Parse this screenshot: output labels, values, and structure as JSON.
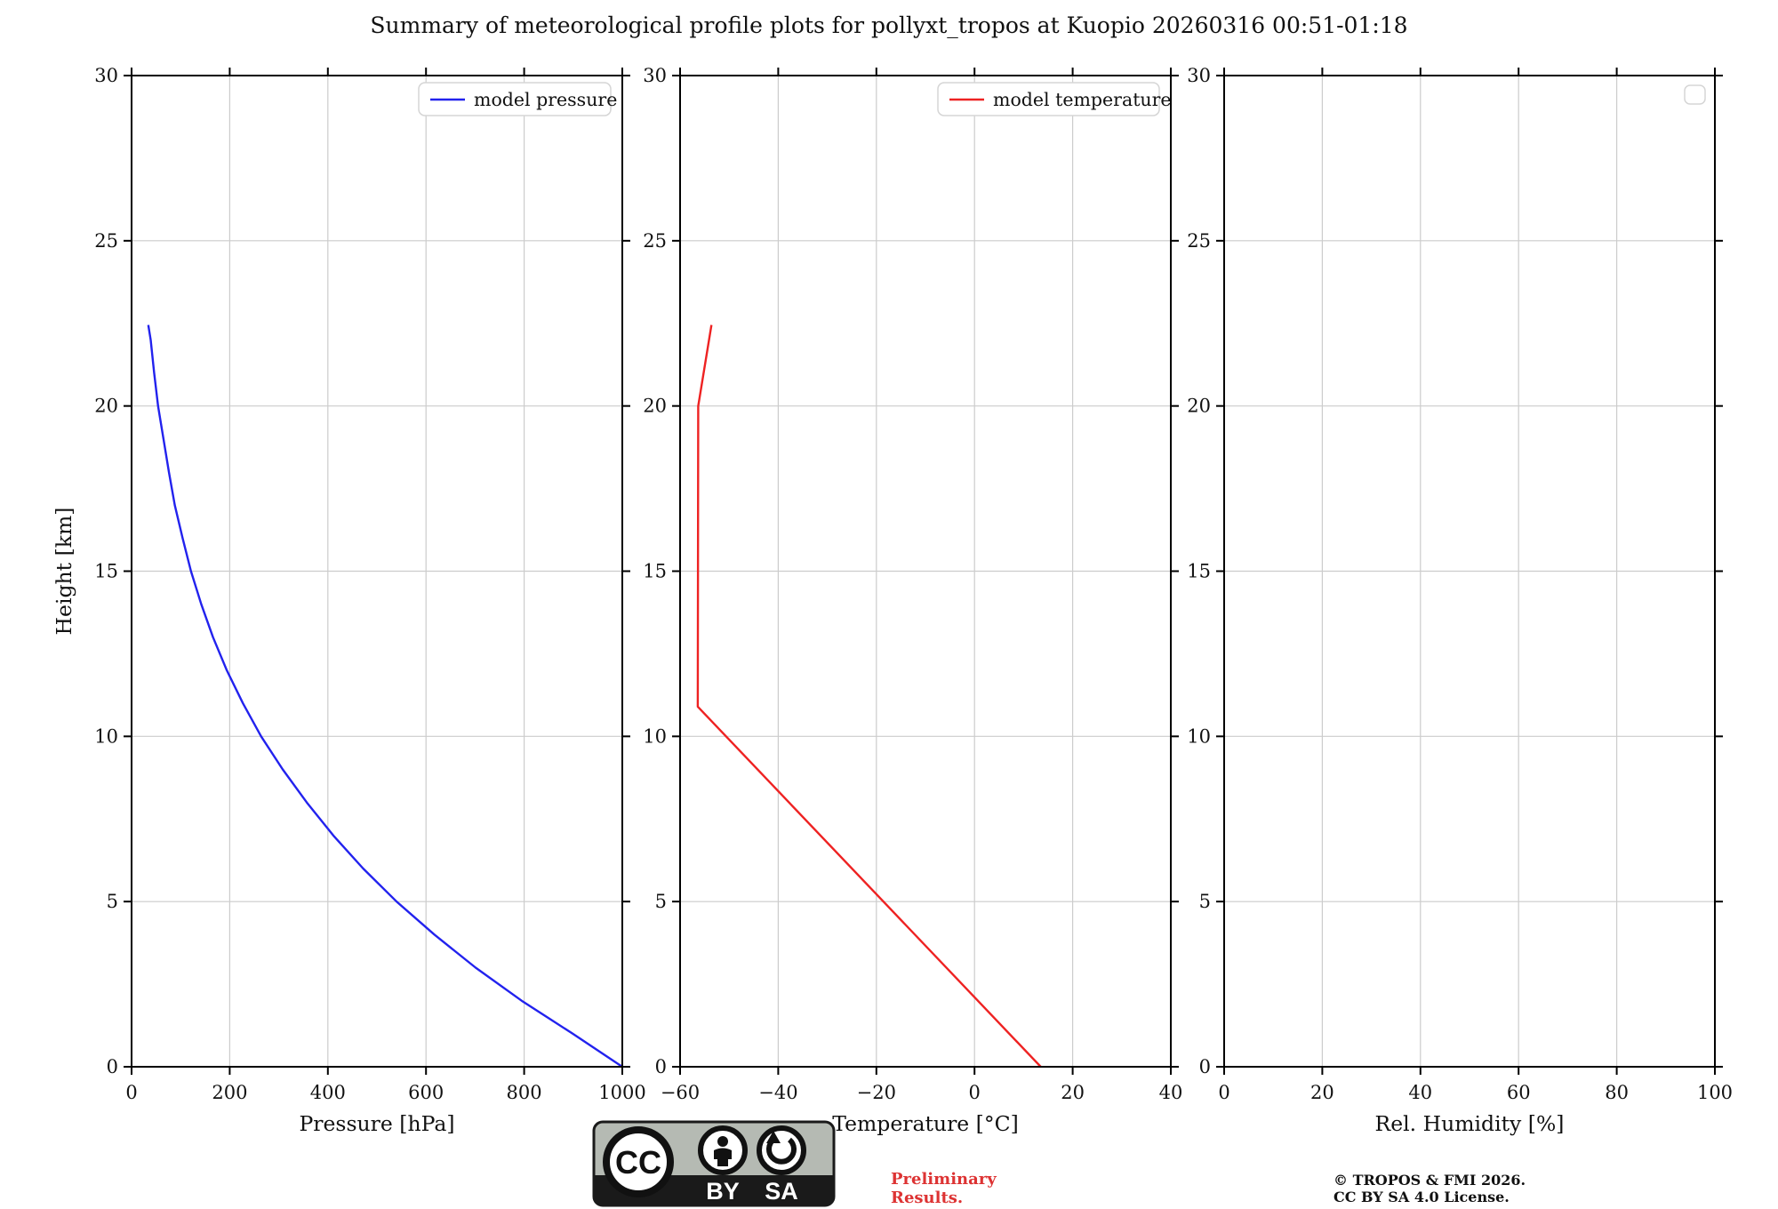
{
  "page": {
    "title": "Summary of meteorological profile plots for pollyxt_tropos at Kuopio 20260316 00:51-01:18"
  },
  "colors": {
    "pressure_line": "#2222ee",
    "temperature_line": "#ee2222",
    "grid": "#cccccc",
    "spine": "#000000",
    "legend_border": "#d5d5d5",
    "preliminary_text": "#dd3333",
    "badge_gray": "#b5bab3",
    "badge_black": "#1a1a1a"
  },
  "chart_data": [
    {
      "type": "line",
      "xlabel": "Pressure [hPa]",
      "ylabel": "Height [km]",
      "xlim": [
        0,
        1000
      ],
      "ylim": [
        0,
        30
      ],
      "xticks": [
        0,
        200,
        400,
        600,
        800,
        1000
      ],
      "yticks": [
        0,
        5,
        10,
        15,
        20,
        25,
        30
      ],
      "grid": true,
      "legend": {
        "empty": false,
        "label": "model pressure",
        "position": "upper right"
      },
      "series": [
        {
          "name": "model pressure",
          "color": "#2222ee",
          "points": [
            [
              1000,
              0
            ],
            [
              899,
              1
            ],
            [
              795,
              2
            ],
            [
              701,
              3
            ],
            [
              617,
              4
            ],
            [
              540,
              5
            ],
            [
              472,
              6
            ],
            [
              411,
              7
            ],
            [
              357,
              8
            ],
            [
              308,
              9
            ],
            [
              264,
              10
            ],
            [
              227,
              11
            ],
            [
              194,
              12
            ],
            [
              166,
              13
            ],
            [
              142,
              14
            ],
            [
              121,
              15
            ],
            [
              104,
              16
            ],
            [
              88,
              17
            ],
            [
              76,
              18
            ],
            [
              65,
              19
            ],
            [
              54,
              20
            ],
            [
              46,
              21
            ],
            [
              39,
              22
            ],
            [
              34,
              22.45
            ]
          ]
        }
      ]
    },
    {
      "type": "line",
      "xlabel": "Temperature [°C]",
      "ylabel": "",
      "xlim": [
        -60,
        40
      ],
      "ylim": [
        0,
        30
      ],
      "xticks": [
        -60,
        -40,
        -20,
        0,
        20,
        40
      ],
      "yticks": [
        0,
        5,
        10,
        15,
        20,
        25,
        30
      ],
      "grid": true,
      "legend": {
        "empty": false,
        "label": "model temperature",
        "position": "upper right"
      },
      "series": [
        {
          "name": "model temperature",
          "color": "#ee2222",
          "points": [
            [
              13.5,
              0
            ],
            [
              -56.4,
              10.9
            ],
            [
              -56.3,
              20
            ],
            [
              -53.6,
              22.45
            ]
          ]
        }
      ]
    },
    {
      "type": "line",
      "xlabel": "Rel. Humidity [%]",
      "ylabel": "",
      "xlim": [
        0,
        100
      ],
      "ylim": [
        0,
        30
      ],
      "xticks": [
        0,
        20,
        40,
        60,
        80,
        100
      ],
      "yticks": [
        0,
        5,
        10,
        15,
        20,
        25,
        30
      ],
      "grid": true,
      "legend": {
        "empty": true,
        "label": "",
        "position": "upper right"
      },
      "series": []
    }
  ],
  "footer": {
    "badge": {
      "cc": "CC",
      "by": "BY",
      "sa": "SA"
    },
    "preliminary_line1": "Preliminary",
    "preliminary_line2": "Results.",
    "copyright_line1": "© TROPOS & FMI 2026.",
    "copyright_line2": "CC BY SA 4.0 License."
  }
}
